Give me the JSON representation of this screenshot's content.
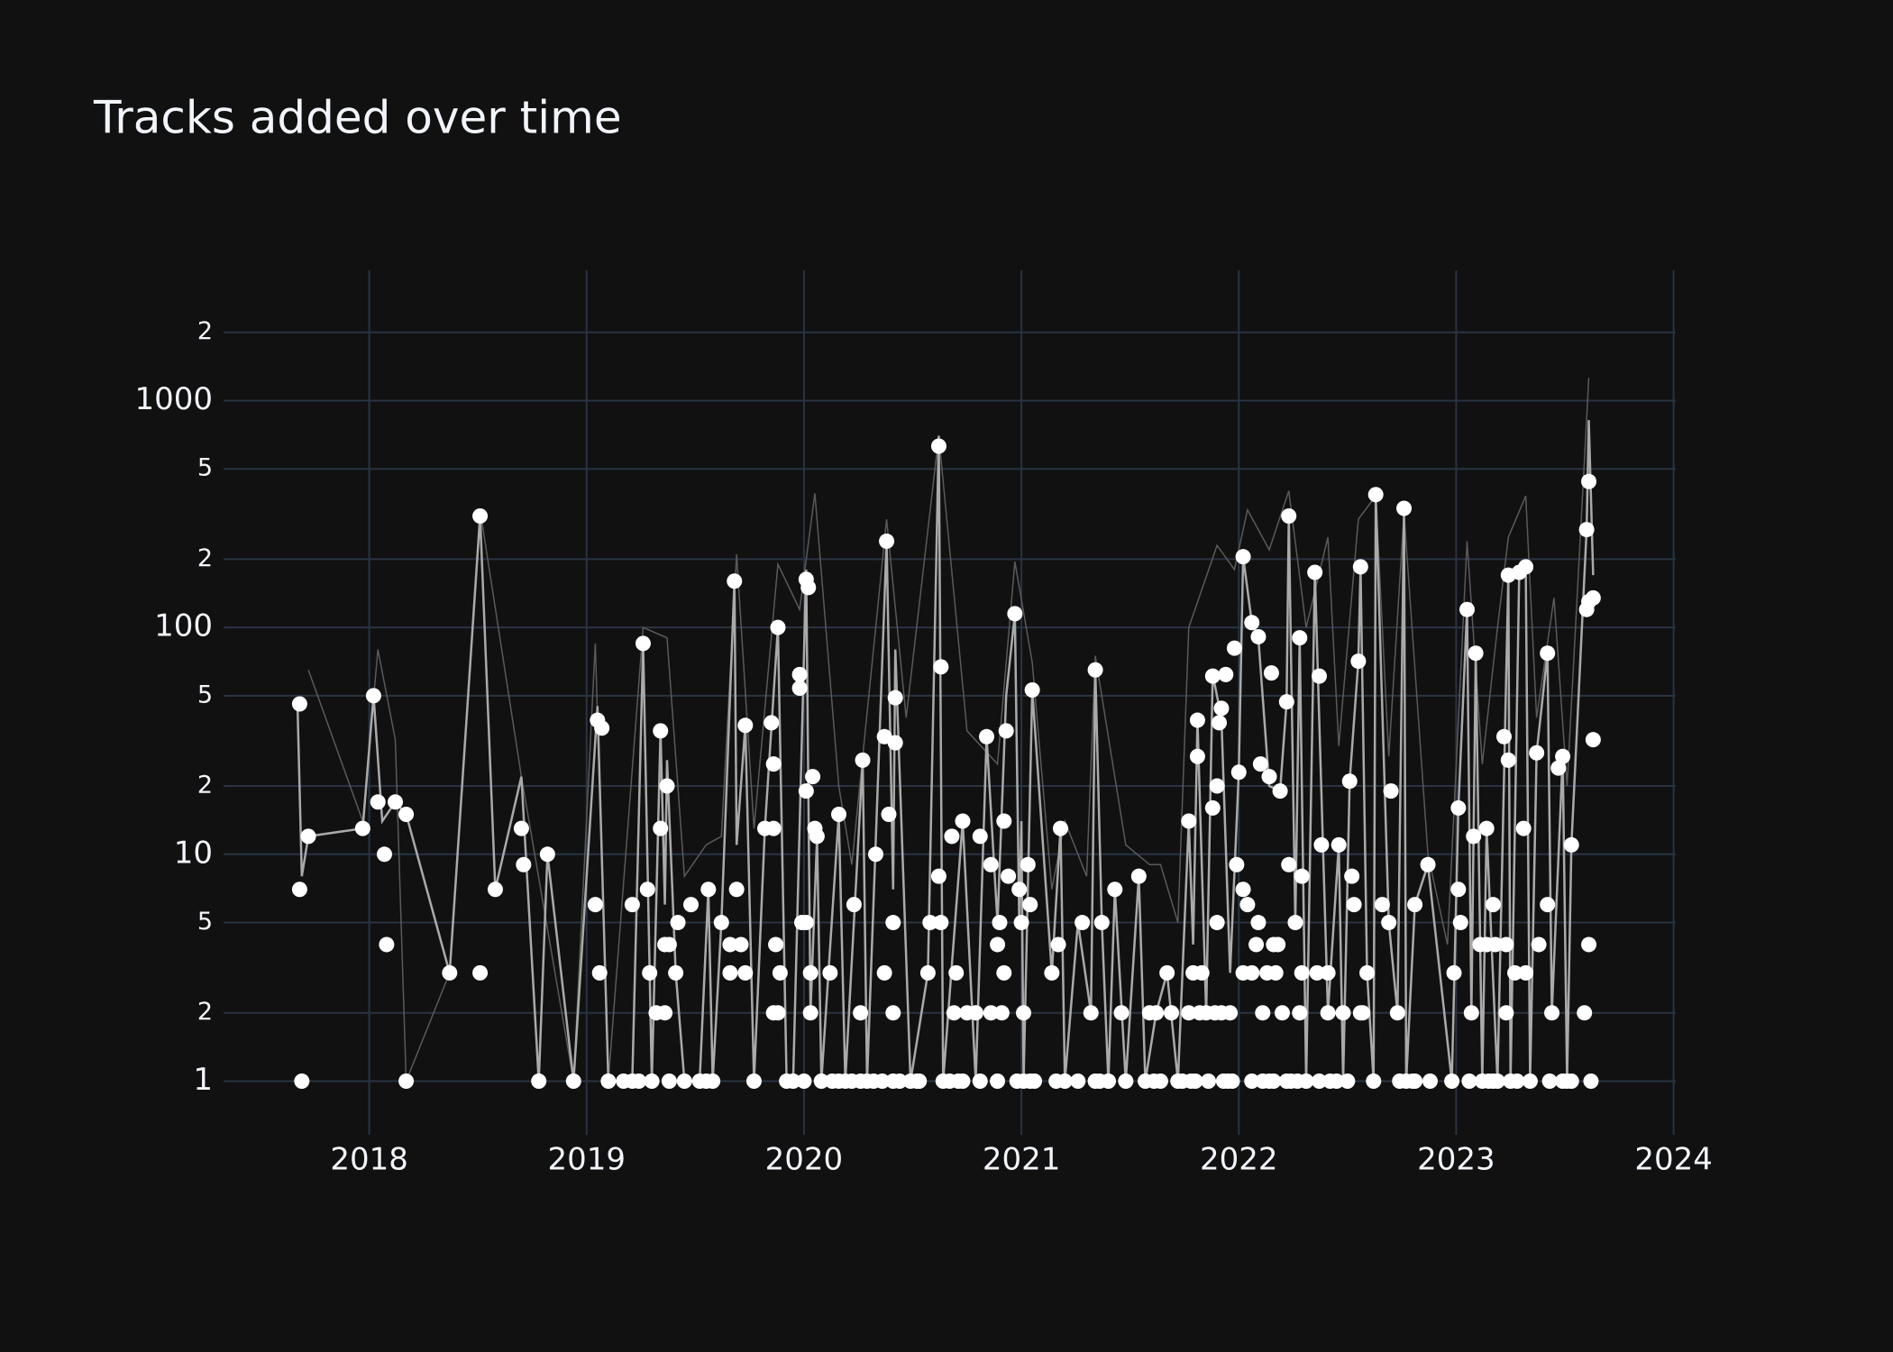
{
  "chart_data": {
    "type": "scatter",
    "title": "Tracks added over time",
    "xlim": [
      2017.33,
      2024.01
    ],
    "xticks": [
      2018,
      2019,
      2020,
      2021,
      2022,
      2023,
      2024
    ],
    "ylim": [
      0.58,
      3750
    ],
    "ylog": true,
    "yticks": [
      {
        "value": 2000,
        "label": "2"
      },
      1000,
      {
        "value": 500,
        "label": "5"
      },
      {
        "value": 200,
        "label": "2"
      },
      100,
      {
        "value": 50,
        "label": "5"
      },
      {
        "value": 20,
        "label": "2"
      },
      10,
      {
        "value": 5,
        "label": "5"
      },
      {
        "value": 2,
        "label": "2"
      },
      1
    ],
    "grid": true,
    "background": "#111111",
    "grid_color": "#283442",
    "series": [
      {
        "mode": "lines",
        "color": "#5a5a5a",
        "x": [
          2017.72,
          2017.97,
          2018.04,
          2018.12,
          2018.17,
          2018.37,
          2018.51,
          2018.7,
          2018.94,
          2019.04,
          2019.1,
          2019.26,
          2019.37,
          2019.45,
          2019.55,
          2019.62,
          2019.69,
          2019.77,
          2019.88,
          2019.98,
          2020.05,
          2020.16,
          2020.22,
          2020.38,
          2020.47,
          2020.62,
          2020.75,
          2020.89,
          2020.97,
          2021.05,
          2021.14,
          2021.2,
          2021.3,
          2021.34,
          2021.48,
          2021.59,
          2021.64,
          2021.72,
          2021.77,
          2021.9,
          2021.98,
          2022.04,
          2022.14,
          2022.23,
          2022.31,
          2022.41,
          2022.46,
          2022.55,
          2022.63,
          2022.69,
          2022.76,
          2022.87,
          2022.96,
          2023.05,
          2023.12,
          2023.19,
          2023.24,
          2023.32,
          2023.37,
          2023.45,
          2023.51,
          2023.61
        ],
        "values": [
          65,
          14,
          80,
          32,
          1,
          3,
          330,
          22,
          1,
          85,
          1,
          100,
          90,
          8,
          11,
          12,
          210,
          13,
          190,
          120,
          390,
          20,
          9,
          300,
          40,
          700,
          35,
          25,
          195,
          70,
          7,
          14,
          8,
          75,
          11,
          9,
          9,
          5,
          100,
          230,
          180,
          330,
          220,
          400,
          100,
          250,
          30,
          300,
          380,
          27,
          320,
          10,
          4,
          240,
          25,
          100,
          250,
          380,
          40,
          135,
          20,
          1260
        ]
      },
      {
        "mode": "lines",
        "color": "#aaaaaa",
        "x": [
          2017.67,
          2017.69,
          2017.72,
          2017.97,
          2018.02,
          2018.06,
          2018.12,
          2018.17,
          2018.37,
          2018.51,
          2018.58,
          2018.7,
          2018.78,
          2018.82,
          2018.94,
          2019.05,
          2019.1,
          2019.21,
          2019.26,
          2019.3,
          2019.34,
          2019.36,
          2019.37,
          2019.41,
          2019.45,
          2019.52,
          2019.56,
          2019.58,
          2019.62,
          2019.68,
          2019.69,
          2019.73,
          2019.77,
          2019.82,
          2019.88,
          2019.92,
          2019.95,
          2020.01,
          2020.03,
          2020.06,
          2020.08,
          2020.16,
          2020.19,
          2020.27,
          2020.29,
          2020.38,
          2020.41,
          2020.42,
          2020.49,
          2020.57,
          2020.62,
          2020.64,
          2020.73,
          2020.79,
          2020.84,
          2020.89,
          2020.93,
          2020.97,
          2020.99,
          2021.0,
          2021.01,
          2021.05,
          2021.14,
          2021.18,
          2021.2,
          2021.26,
          2021.32,
          2021.34,
          2021.37,
          2021.4,
          2021.43,
          2021.48,
          2021.54,
          2021.57,
          2021.62,
          2021.67,
          2021.72,
          2021.77,
          2021.79,
          2021.81,
          2021.85,
          2021.88,
          2021.92,
          2021.96,
          2022.0,
          2022.02,
          2022.06,
          2022.09,
          2022.14,
          2022.19,
          2022.22,
          2022.23,
          2022.26,
          2022.28,
          2022.31,
          2022.35,
          2022.41,
          2022.46,
          2022.48,
          2022.51,
          2022.55,
          2022.56,
          2022.59,
          2022.62,
          2022.63,
          2022.69,
          2022.73,
          2022.76,
          2022.77,
          2022.81,
          2022.87,
          2022.98,
          2023.01,
          2023.05,
          2023.07,
          2023.09,
          2023.12,
          2023.14,
          2023.19,
          2023.24,
          2023.25,
          2023.29,
          2023.32,
          2023.34,
          2023.37,
          2023.42,
          2023.44,
          2023.49,
          2023.51,
          2023.53,
          2023.6,
          2023.61,
          2023.63
        ],
        "values": [
          46,
          8,
          12,
          13,
          50,
          14,
          17,
          15,
          3,
          310,
          7,
          22,
          1,
          10,
          1,
          45,
          1,
          1,
          85,
          1,
          35,
          6,
          26,
          3,
          1,
          1,
          7,
          1,
          5,
          160,
          11,
          37,
          1,
          13,
          100,
          1,
          1,
          180,
          2,
          12,
          1,
          15,
          1,
          26,
          1,
          240,
          7,
          80,
          1,
          3,
          700,
          1,
          14,
          1,
          33,
          5,
          50,
          115,
          5,
          14,
          1,
          53,
          3,
          13,
          1,
          5,
          2,
          65,
          5,
          1,
          7,
          1,
          8,
          1,
          2,
          3,
          1,
          14,
          4,
          39,
          2,
          62,
          40,
          3,
          23,
          205,
          105,
          90,
          20,
          19,
          47,
          310,
          5,
          90,
          1,
          175,
          2,
          11,
          1,
          21,
          71,
          185,
          3,
          1,
          385,
          5,
          2,
          335,
          1,
          6,
          9,
          1,
          16,
          120,
          2,
          77,
          1,
          13,
          1,
          170,
          1,
          175,
          185,
          1,
          28,
          77,
          2,
          27,
          1,
          11,
          270,
          820,
          170
        ]
      },
      {
        "mode": "markers",
        "color": "#ffffff",
        "x": [
          2017.68,
          2017.68,
          2017.69,
          2017.72,
          2017.97,
          2018.02,
          2018.04,
          2018.07,
          2018.08,
          2018.12,
          2018.17,
          2018.17,
          2018.37,
          2018.51,
          2018.51,
          2018.58,
          2018.7,
          2018.71,
          2018.78,
          2018.82,
          2018.94,
          2019.04,
          2019.05,
          2019.06,
          2019.07,
          2019.1,
          2019.17,
          2019.21,
          2019.21,
          2019.24,
          2019.26,
          2019.28,
          2019.29,
          2019.3,
          2019.32,
          2019.34,
          2019.34,
          2019.36,
          2019.36,
          2019.37,
          2019.38,
          2019.38,
          2019.41,
          2019.42,
          2019.45,
          2019.48,
          2019.52,
          2019.55,
          2019.56,
          2019.58,
          2019.62,
          2019.66,
          2019.66,
          2019.68,
          2019.69,
          2019.71,
          2019.73,
          2019.73,
          2019.77,
          2019.82,
          2019.85,
          2019.86,
          2019.86,
          2019.86,
          2019.87,
          2019.88,
          2019.88,
          2019.89,
          2019.92,
          2019.95,
          2019.98,
          2019.98,
          2019.99,
          2020.0,
          2020.01,
          2020.01,
          2020.01,
          2020.02,
          2020.03,
          2020.03,
          2020.04,
          2020.05,
          2020.06,
          2020.08,
          2020.12,
          2020.13,
          2020.16,
          2020.16,
          2020.19,
          2020.22,
          2020.23,
          2020.26,
          2020.26,
          2020.27,
          2020.29,
          2020.32,
          2020.33,
          2020.36,
          2020.37,
          2020.37,
          2020.38,
          2020.39,
          2020.41,
          2020.41,
          2020.41,
          2020.42,
          2020.42,
          2020.44,
          2020.49,
          2020.52,
          2020.53,
          2020.57,
          2020.58,
          2020.62,
          2020.62,
          2020.63,
          2020.63,
          2020.64,
          2020.67,
          2020.68,
          2020.69,
          2020.7,
          2020.71,
          2020.73,
          2020.73,
          2020.75,
          2020.79,
          2020.81,
          2020.81,
          2020.84,
          2020.86,
          2020.86,
          2020.89,
          2020.89,
          2020.9,
          2020.91,
          2020.92,
          2020.92,
          2020.93,
          2020.94,
          2020.97,
          2020.98,
          2020.99,
          2021.0,
          2021.01,
          2021.01,
          2021.03,
          2021.04,
          2021.04,
          2021.05,
          2021.06,
          2021.14,
          2021.16,
          2021.17,
          2021.18,
          2021.2,
          2021.26,
          2021.28,
          2021.32,
          2021.34,
          2021.34,
          2021.36,
          2021.37,
          2021.4,
          2021.43,
          2021.46,
          2021.48,
          2021.54,
          2021.57,
          2021.59,
          2021.61,
          2021.62,
          2021.64,
          2021.67,
          2021.69,
          2021.72,
          2021.74,
          2021.77,
          2021.77,
          2021.78,
          2021.79,
          2021.8,
          2021.81,
          2021.81,
          2021.82,
          2021.83,
          2021.85,
          2021.86,
          2021.88,
          2021.88,
          2021.89,
          2021.9,
          2021.9,
          2021.91,
          2021.92,
          2021.92,
          2021.93,
          2021.94,
          2021.95,
          2021.96,
          2021.97,
          2021.98,
          2021.99,
          2022.0,
          2022.02,
          2022.02,
          2022.02,
          2022.04,
          2022.06,
          2022.06,
          2022.06,
          2022.08,
          2022.09,
          2022.09,
          2022.1,
          2022.11,
          2022.11,
          2022.13,
          2022.14,
          2022.14,
          2022.15,
          2022.16,
          2022.16,
          2022.17,
          2022.18,
          2022.19,
          2022.2,
          2022.22,
          2022.22,
          2022.23,
          2022.23,
          2022.24,
          2022.26,
          2022.27,
          2022.28,
          2022.28,
          2022.29,
          2022.29,
          2022.31,
          2022.35,
          2022.36,
          2022.37,
          2022.37,
          2022.38,
          2022.41,
          2022.41,
          2022.42,
          2022.45,
          2022.46,
          2022.48,
          2022.5,
          2022.51,
          2022.52,
          2022.53,
          2022.55,
          2022.56,
          2022.56,
          2022.57,
          2022.59,
          2022.62,
          2022.63,
          2022.66,
          2022.69,
          2022.7,
          2022.73,
          2022.74,
          2022.76,
          2022.77,
          2022.8,
          2022.81,
          2022.81,
          2022.87,
          2022.88,
          2022.98,
          2022.99,
          2023.01,
          2023.01,
          2023.02,
          2023.05,
          2023.06,
          2023.07,
          2023.08,
          2023.09,
          2023.11,
          2023.12,
          2023.14,
          2023.14,
          2023.15,
          2023.17,
          2023.17,
          2023.18,
          2023.19,
          2023.22,
          2023.23,
          2023.23,
          2023.24,
          2023.24,
          2023.25,
          2023.27,
          2023.28,
          2023.29,
          2023.31,
          2023.32,
          2023.32,
          2023.34,
          2023.37,
          2023.38,
          2023.42,
          2023.42,
          2023.43,
          2023.44,
          2023.47,
          2023.49,
          2023.49,
          2023.51,
          2023.53,
          2023.53,
          2023.59,
          2023.6,
          2023.6,
          2023.61,
          2023.61,
          2023.61,
          2023.62,
          2023.63,
          2023.63
        ],
        "values": [
          46,
          7,
          1,
          12,
          13,
          50,
          17,
          10,
          4,
          17,
          15,
          1,
          3,
          3,
          310,
          7,
          13,
          9,
          1,
          10,
          1,
          6,
          39,
          3,
          36,
          1,
          1,
          6,
          1,
          1,
          85,
          7,
          3,
          1,
          2,
          35,
          13,
          2,
          4,
          20,
          1,
          4,
          3,
          5,
          1,
          6,
          1,
          1,
          7,
          1,
          5,
          4,
          3,
          160,
          7,
          4,
          37,
          3,
          1,
          13,
          38,
          13,
          25,
          2,
          4,
          100,
          2,
          3,
          1,
          1,
          62,
          54,
          5,
          1,
          163,
          5,
          19,
          150,
          3,
          2,
          22,
          13,
          12,
          1,
          3,
          1,
          15,
          1,
          1,
          1,
          6,
          2,
          1,
          26,
          1,
          1,
          10,
          1,
          3,
          33,
          240,
          15,
          5,
          2,
          1,
          49,
          31,
          1,
          1,
          1,
          1,
          3,
          5,
          630,
          8,
          67,
          5,
          1,
          1,
          12,
          2,
          3,
          1,
          14,
          1,
          2,
          2,
          1,
          12,
          33,
          2,
          9,
          1,
          4,
          5,
          2,
          14,
          3,
          35,
          8,
          115,
          1,
          7,
          5,
          2,
          1,
          9,
          1,
          6,
          53,
          1,
          3,
          1,
          4,
          13,
          1,
          1,
          5,
          2,
          65,
          1,
          1,
          5,
          1,
          7,
          2,
          1,
          8,
          1,
          2,
          1,
          2,
          1,
          3,
          2,
          1,
          1,
          14,
          2,
          1,
          3,
          1,
          39,
          27,
          2,
          3,
          2,
          1,
          61,
          16,
          2,
          20,
          5,
          38,
          44,
          2,
          1,
          62,
          1,
          2,
          1,
          81,
          9,
          23,
          205,
          7,
          3,
          6,
          1,
          3,
          105,
          4,
          91,
          5,
          25,
          2,
          1,
          3,
          22,
          1,
          63,
          1,
          4,
          3,
          4,
          19,
          2,
          1,
          47,
          310,
          9,
          1,
          5,
          1,
          90,
          2,
          8,
          3,
          1,
          175,
          3,
          61,
          1,
          11,
          2,
          3,
          1,
          1,
          11,
          2,
          1,
          21,
          8,
          6,
          71,
          185,
          2,
          2,
          3,
          1,
          385,
          6,
          5,
          19,
          2,
          1,
          335,
          1,
          1,
          6,
          1,
          9,
          1,
          1,
          3,
          7,
          16,
          5,
          120,
          1,
          2,
          12,
          77,
          4,
          1,
          4,
          13,
          1,
          1,
          6,
          4,
          1,
          33,
          4,
          2,
          170,
          26,
          1,
          3,
          1,
          175,
          13,
          185,
          3,
          1,
          28,
          4,
          77,
          6,
          1,
          2,
          24,
          27,
          1,
          1,
          11,
          1,
          2,
          270,
          120,
          440,
          4,
          130,
          1,
          135,
          32
        ]
      }
    ]
  }
}
